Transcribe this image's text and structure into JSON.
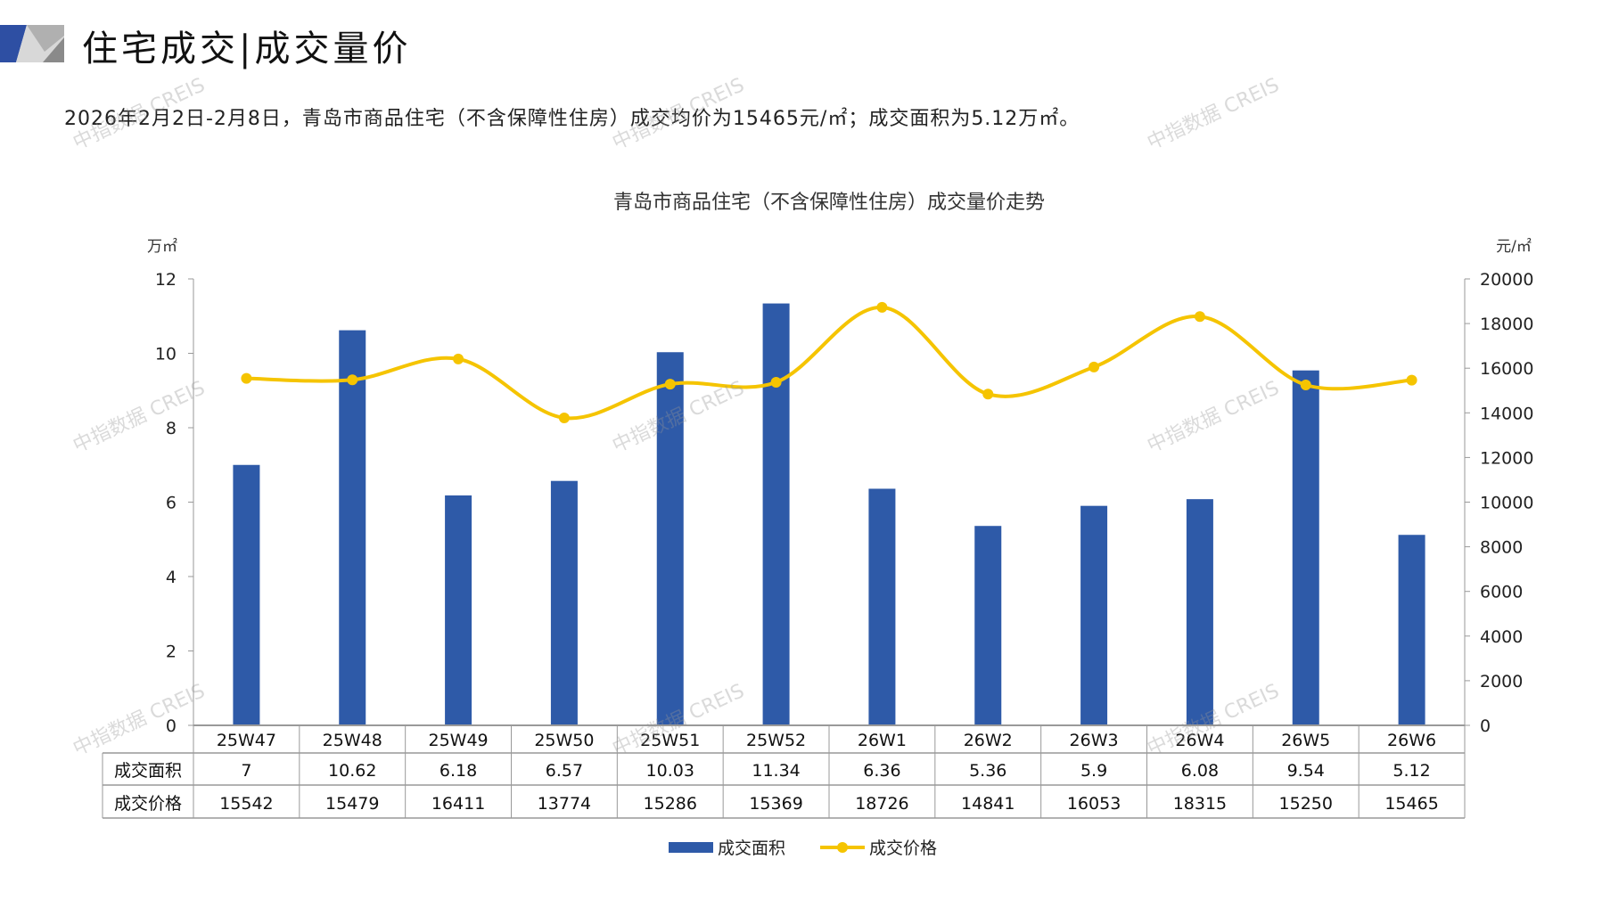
{
  "header": {
    "title": "住宅成交|成交量价"
  },
  "summary": "2026年2月2日-2月8日，青岛市商品住宅（不含保障性住房）成交均价为15465元/㎡；成交面积为5.12万㎡。",
  "watermark": "中指数据 CREIS",
  "colors": {
    "bar": "#2e5aa8",
    "line": "#f5c400",
    "brand": "#2e4fa3"
  },
  "chart_data": {
    "type": "bar",
    "title": "青岛市商品住宅（不含保障性住房）成交量价走势",
    "categories": [
      "25W47",
      "25W48",
      "25W49",
      "25W50",
      "25W51",
      "25W52",
      "26W1",
      "26W2",
      "26W3",
      "26W4",
      "26W5",
      "26W6"
    ],
    "series": [
      {
        "name": "成交面积",
        "type": "bar",
        "axis": "left",
        "values": [
          7,
          10.62,
          6.18,
          6.57,
          10.03,
          11.34,
          6.36,
          5.36,
          5.9,
          6.08,
          9.54,
          5.12
        ],
        "labels": [
          "7",
          "10.62",
          "6.18",
          "6.57",
          "10.03",
          "11.34",
          "6.36",
          "5.36",
          "5.9",
          "6.08",
          "9.54",
          "5.12"
        ]
      },
      {
        "name": "成交价格",
        "type": "line",
        "axis": "right",
        "values": [
          15542,
          15479,
          16411,
          13774,
          15286,
          15369,
          18726,
          14841,
          16053,
          18315,
          15250,
          15465
        ],
        "labels": [
          "15542",
          "15479",
          "16411",
          "13774",
          "15286",
          "15369",
          "18726",
          "14841",
          "16053",
          "18315",
          "15250",
          "15465"
        ]
      }
    ],
    "ylabel_left": "万㎡",
    "ylabel_right": "元/㎡",
    "ylim_left": [
      0,
      12
    ],
    "yticks_left": [
      "0",
      "2",
      "4",
      "6",
      "8",
      "10",
      "12"
    ],
    "ylim_right": [
      0,
      20000
    ],
    "yticks_right": [
      "0",
      "2000",
      "4000",
      "6000",
      "8000",
      "10000",
      "12000",
      "14000",
      "16000",
      "18000",
      "20000"
    ],
    "legend": "bottom",
    "grid": false,
    "data_table": true
  }
}
